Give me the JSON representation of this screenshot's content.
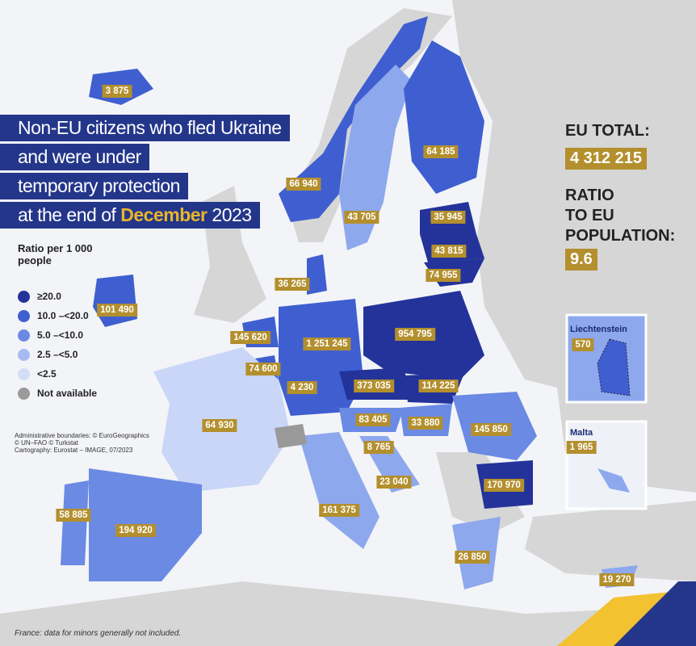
{
  "title": {
    "lines": [
      "Non-EU citizens who fled Ukraine",
      "and were under",
      "temporary protection"
    ],
    "last_line": {
      "before": "at the end of",
      "highlight": "December",
      "after": "2023"
    }
  },
  "legend": {
    "title_lines": [
      "Ratio per 1 000",
      "people"
    ],
    "items": [
      "≥20.0",
      "10.0 –<20.0",
      "5.0 –<10.0",
      "2.5 –<5.0",
      "<2.5",
      "Not available"
    ]
  },
  "credits": [
    "Administrative boundaries: © EuroGeographics",
    "© UN–FAO © Turkstat",
    "Cartography: Eurostat – IMAGE, 07/2023"
  ],
  "eu_total": {
    "label": "EU TOTAL:",
    "value": "4 312 215"
  },
  "ratio": {
    "label_lines": [
      "RATIO",
      "TO EU",
      "POPULATION:"
    ],
    "value": "9.6"
  },
  "map_labels": [
    "3 875",
    "66 940",
    "64 185",
    "43 705",
    "35 945",
    "43 815",
    "74 955",
    "36 265",
    "101 490",
    "145 620",
    "1 251 245",
    "954 795",
    "74 600",
    "4 230",
    "373 035",
    "114 225",
    "64 930",
    "83 405",
    "33 880",
    "145 850",
    "8 765",
    "23 040",
    "170 970",
    "161 375",
    "58 885",
    "194 920",
    "26 850",
    "19 270"
  ],
  "insets": [
    {
      "name": "Liechtenstein",
      "value": "570"
    },
    {
      "name": "Malta",
      "value": "1 965"
    }
  ],
  "footnote": "France: data for minors generally not included."
}
